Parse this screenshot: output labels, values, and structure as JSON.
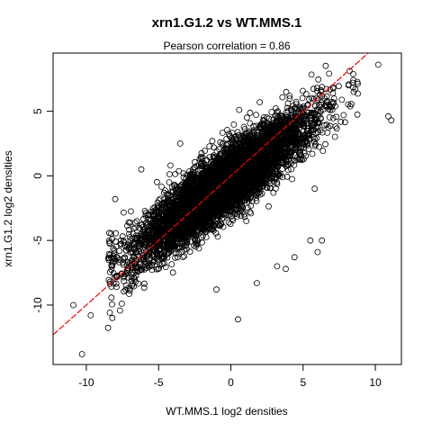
{
  "chart_data": {
    "type": "scatter",
    "title": "xrn1.G1.2 vs WT.MMS.1",
    "subtitle": "Pearson correlation =  0.86",
    "xlabel": "WT.MMS.1 log2 densities",
    "ylabel": "xrn1.G1.2 log2 densities",
    "xlim": [
      -12.3,
      11.8
    ],
    "ylim": [
      -14.6,
      9.5
    ],
    "xticks": [
      -10,
      -5,
      0,
      5,
      10
    ],
    "yticks": [
      -10,
      -5,
      0,
      5
    ],
    "grid": false,
    "legend": "none",
    "point_color": "#000000",
    "reference_line": {
      "type": "y = x",
      "color": "#ff0000",
      "style": "dashed"
    },
    "cloud": {
      "approx_count": 6000,
      "correlation": 0.86,
      "x_range": [
        -8.5,
        9.0
      ],
      "slope": 0.82,
      "intercept": -0.3,
      "residual_sd": 1.3
    },
    "notable_points": [
      {
        "x": 10.2,
        "y": 8.6
      },
      {
        "x": 10.9,
        "y": 4.6
      },
      {
        "x": 11.1,
        "y": 4.3
      },
      {
        "x": -10.3,
        "y": -13.8
      },
      {
        "x": 0.5,
        "y": -11.1
      },
      {
        "x": 3.8,
        "y": -7.2
      },
      {
        "x": 5.5,
        "y": -5.0
      },
      {
        "x": 6.3,
        "y": -5.0
      },
      {
        "x": 6.0,
        "y": -5.9
      },
      {
        "x": 4.4,
        "y": -6.3
      },
      {
        "x": 3.2,
        "y": -7.0
      },
      {
        "x": -8.2,
        "y": -11.0
      },
      {
        "x": -10.9,
        "y": -10.0
      },
      {
        "x": -9.7,
        "y": -10.8
      },
      {
        "x": 2.0,
        "y": 5.7
      },
      {
        "x": 7.1,
        "y": 5.7
      },
      {
        "x": 8.5,
        "y": 6.5
      },
      {
        "x": -8.0,
        "y": -1.8
      },
      {
        "x": -6.2,
        "y": 0.5
      },
      {
        "x": -3.5,
        "y": 2.5
      },
      {
        "x": 5.8,
        "y": -1.0
      },
      {
        "x": 1.8,
        "y": -8.3
      },
      {
        "x": -1.0,
        "y": -8.8
      }
    ]
  }
}
